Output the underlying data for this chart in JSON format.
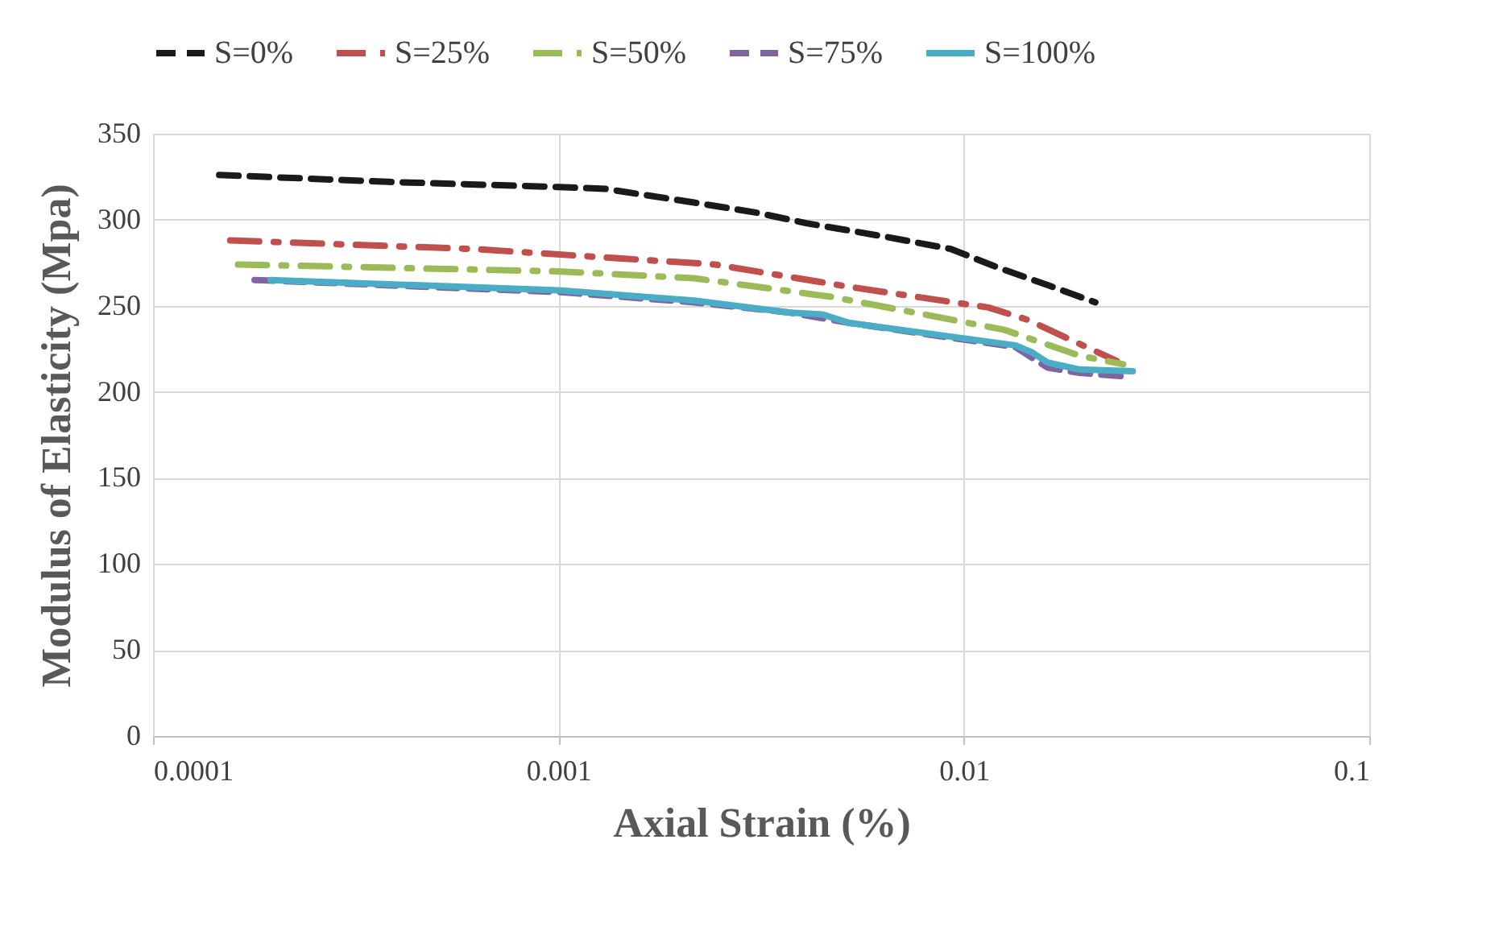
{
  "chart_data": {
    "type": "line",
    "xlabel": "Axial Strain (%)",
    "ylabel": "Modulus of Elasticity (Mpa)",
    "log": "x",
    "xlim": [
      0.0001,
      0.1
    ],
    "xticks": [
      0.0001,
      0.001,
      0.01,
      0.1
    ],
    "ylim": [
      0,
      350
    ],
    "yticks": [
      0,
      50,
      100,
      150,
      200,
      250,
      300,
      350
    ],
    "grid": true,
    "legend": "top",
    "marker": "none",
    "series": [
      {
        "name": "S=0%",
        "color": "#1a1a1a",
        "line_style": "dashed",
        "x": [
          0.0001456,
          0.00038,
          0.001,
          0.0013,
          0.00216,
          0.0031,
          0.00408,
          0.00645,
          0.00929,
          0.0122,
          0.0161,
          0.0211
        ],
        "values": [
          326,
          322,
          319,
          318,
          310,
          304,
          298,
          290,
          283,
          272,
          262,
          252
        ]
      },
      {
        "name": "S=25%",
        "color": "#c0504d",
        "line_style": "dashdot",
        "x": [
          0.000155,
          0.000617,
          0.00243,
          0.00522,
          0.0115,
          0.0143,
          0.0238
        ],
        "values": [
          288,
          283,
          274,
          261,
          249,
          242,
          218
        ]
      },
      {
        "name": "S=50%",
        "color": "#9bbb59",
        "line_style": "dashdot",
        "x": [
          0.000162,
          0.001,
          0.00216,
          0.00478,
          0.0126,
          0.0193,
          0.0247
        ],
        "values": [
          274,
          270,
          266,
          255,
          236,
          221,
          216
        ]
      },
      {
        "name": "S=75%",
        "color": "#8064a2",
        "line_style": "dashed",
        "x": [
          0.000178,
          0.001,
          0.00216,
          0.00373,
          0.00522,
          0.0134,
          0.0161,
          0.0193,
          0.0247
        ],
        "values": [
          265,
          258,
          252,
          246,
          240,
          226,
          214,
          211,
          209
        ]
      },
      {
        "name": "S=100%",
        "color": "#4bacc6",
        "line_style": "solid",
        "x": [
          0.000195,
          0.001,
          0.00216,
          0.00373,
          0.00447,
          0.00522,
          0.0134,
          0.0147,
          0.0161,
          0.0193,
          0.0261
        ],
        "values": [
          265,
          259,
          253,
          246,
          245,
          240,
          227,
          223,
          217,
          213,
          212
        ]
      }
    ]
  }
}
